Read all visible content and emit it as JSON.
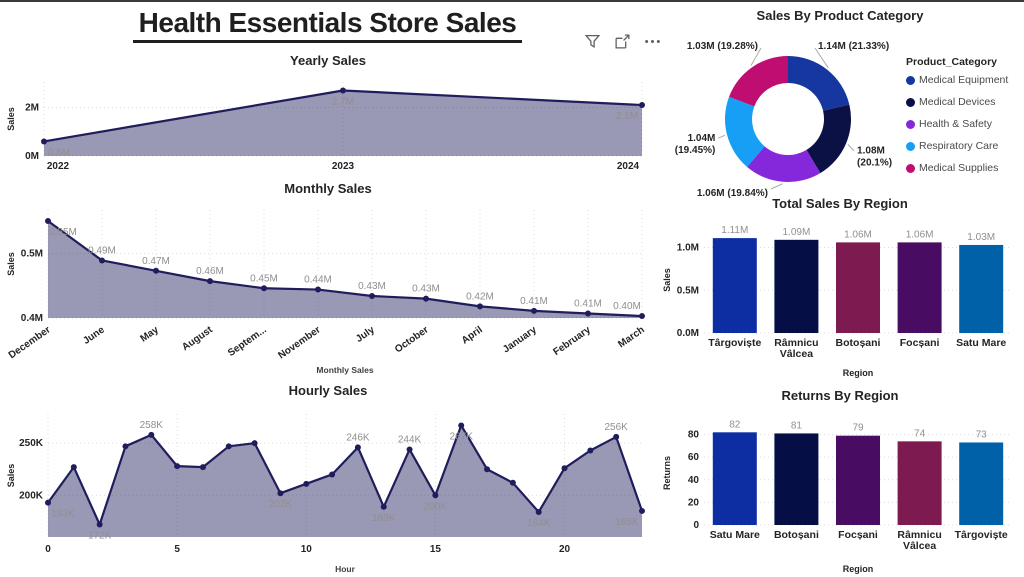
{
  "page": {
    "title": "Health Essentials Store Sales"
  },
  "toolbar": {
    "icons": [
      "filter-icon",
      "focus-mode-icon",
      "more-options-icon"
    ]
  },
  "theme": {
    "line_color": "#1F1D5C",
    "area_fill": "rgba(31,29,92,0.45)",
    "data_label_color": "#8F8F8F",
    "axis_label_color": "#252423",
    "grid_color": "#DCDCDC"
  },
  "chart_data": [
    {
      "type": "area",
      "title": "Yearly Sales",
      "ylabel": "Sales",
      "x": [
        "2022",
        "2023",
        "2024"
      ],
      "values": [
        600000,
        2700000,
        2100000
      ],
      "labels": [
        "0.6M",
        "2.7M",
        "2.1M"
      ],
      "label_pos": [
        "below",
        "below",
        "below"
      ],
      "yticks": [
        {
          "v": 0,
          "t": "0M"
        },
        {
          "v": 2000000,
          "t": "2M"
        }
      ],
      "ylim": [
        0,
        3050000
      ],
      "grid": true
    },
    {
      "type": "area",
      "title": "Monthly Sales",
      "ylabel": "Sales",
      "xlabel": "Monthly Sales",
      "x": [
        "December",
        "June",
        "May",
        "August",
        "Septem...",
        "November",
        "July",
        "October",
        "April",
        "January",
        "February",
        "March"
      ],
      "values": [
        550000,
        489000,
        473000,
        457000,
        446000,
        444000,
        434000,
        430000,
        418000,
        411000,
        407000,
        403000
      ],
      "labels": [
        "0.55M",
        "0.49M",
        "0.47M",
        "0.46M",
        "0.45M",
        "0.44M",
        "0.43M",
        "0.43M",
        "0.42M",
        "0.41M",
        "0.41M",
        "0.40M"
      ],
      "label_pos": [
        "below",
        "above",
        "above",
        "above",
        "above",
        "above",
        "above",
        "above",
        "above",
        "above",
        "above",
        "above"
      ],
      "yticks": [
        {
          "v": 400000,
          "t": "0.4M"
        },
        {
          "v": 500000,
          "t": "0.5M"
        }
      ],
      "ylim": [
        400000,
        567000
      ],
      "grid": true
    },
    {
      "type": "area",
      "title": "Hourly Sales",
      "ylabel": "Sales",
      "xlabel": "Hour",
      "x": [
        0,
        1,
        2,
        3,
        4,
        5,
        6,
        7,
        8,
        9,
        10,
        11,
        12,
        13,
        14,
        15,
        16,
        17,
        18,
        19,
        20,
        21,
        22,
        23
      ],
      "xticks": [
        0,
        5,
        10,
        15,
        20
      ],
      "values": [
        193000,
        227000,
        172000,
        247000,
        258000,
        228000,
        227000,
        247000,
        250000,
        202000,
        211000,
        220000,
        246000,
        189000,
        244000,
        200000,
        267000,
        225000,
        212000,
        184000,
        226000,
        243000,
        256000,
        185000
      ],
      "labels": [
        "193K",
        null,
        "172K",
        null,
        "258K",
        null,
        null,
        null,
        null,
        "202K",
        null,
        null,
        "246K",
        "189K",
        "244K",
        "200K",
        "267K",
        null,
        null,
        "184K",
        null,
        null,
        "256K",
        "185K"
      ],
      "label_pos": [
        "below",
        null,
        "below",
        null,
        "above",
        null,
        null,
        null,
        null,
        "below",
        null,
        null,
        "above",
        "below",
        "above",
        "below",
        "below",
        null,
        null,
        "below",
        null,
        null,
        "above",
        "below"
      ],
      "yticks": [
        {
          "v": 200000,
          "t": "200K"
        },
        {
          "v": 250000,
          "t": "250K"
        }
      ],
      "ylim": [
        160000,
        278000
      ],
      "grid": true
    },
    {
      "type": "donut",
      "title": "Sales By Product Category",
      "legend_title": "Product_Category",
      "legend_position": "right",
      "slices": [
        {
          "name": "Medical Equipment",
          "value": "1.14M",
          "pct": "21.33%",
          "share": 21.33,
          "color": "#16379F"
        },
        {
          "name": "Medical Devices",
          "value": "1.08M",
          "pct": "20.1%",
          "share": 20.1,
          "color": "#0B1145"
        },
        {
          "name": "Health & Safety",
          "value": "1.06M",
          "pct": "19.84%",
          "share": 19.84,
          "color": "#8527DB"
        },
        {
          "name": "Respiratory Care",
          "value": "1.04M",
          "pct": "19.45%",
          "share": 19.45,
          "color": "#169FF4"
        },
        {
          "name": "Medical Supplies",
          "value": "1.03M",
          "pct": "19.28%",
          "share": 19.28,
          "color": "#C00D72"
        }
      ]
    },
    {
      "type": "bar",
      "title": "Total Sales By Region",
      "ylabel": "Sales",
      "xlabel": "Region",
      "categories": [
        "Târgoviște",
        "Râmnicu Vâlcea",
        "Botoșani",
        "Focșani",
        "Satu Mare"
      ],
      "values": [
        1110000,
        1090000,
        1060000,
        1060000,
        1030000
      ],
      "labels": [
        "1.11M",
        "1.09M",
        "1.06M",
        "1.06M",
        "1.03M"
      ],
      "colors": [
        "#0D2EA3",
        "#050F45",
        "#7D1B50",
        "#490C63",
        "#0061A8"
      ],
      "yticks": [
        {
          "v": 0,
          "t": "0.0M"
        },
        {
          "v": 500000,
          "t": "0.5M"
        },
        {
          "v": 1000000,
          "t": "1.0M"
        }
      ],
      "ylim": [
        0,
        1240000
      ],
      "grid": true
    },
    {
      "type": "bar",
      "title": "Returns By Region",
      "ylabel": "Returns",
      "xlabel": "Region",
      "categories": [
        "Satu Mare",
        "Botoșani",
        "Focșani",
        "Râmnicu Vâlcea",
        "Târgoviște"
      ],
      "values": [
        82,
        81,
        79,
        74,
        73
      ],
      "labels": [
        "82",
        "81",
        "79",
        "74",
        "73"
      ],
      "colors": [
        "#0D2EA3",
        "#050F45",
        "#490C63",
        "#7D1B50",
        "#0061A8"
      ],
      "yticks": [
        {
          "v": 0,
          "t": "0"
        },
        {
          "v": 20,
          "t": "20"
        },
        {
          "v": 40,
          "t": "40"
        },
        {
          "v": 60,
          "t": "60"
        },
        {
          "v": 80,
          "t": "80"
        }
      ],
      "ylim": [
        0,
        92
      ],
      "grid": true
    }
  ]
}
